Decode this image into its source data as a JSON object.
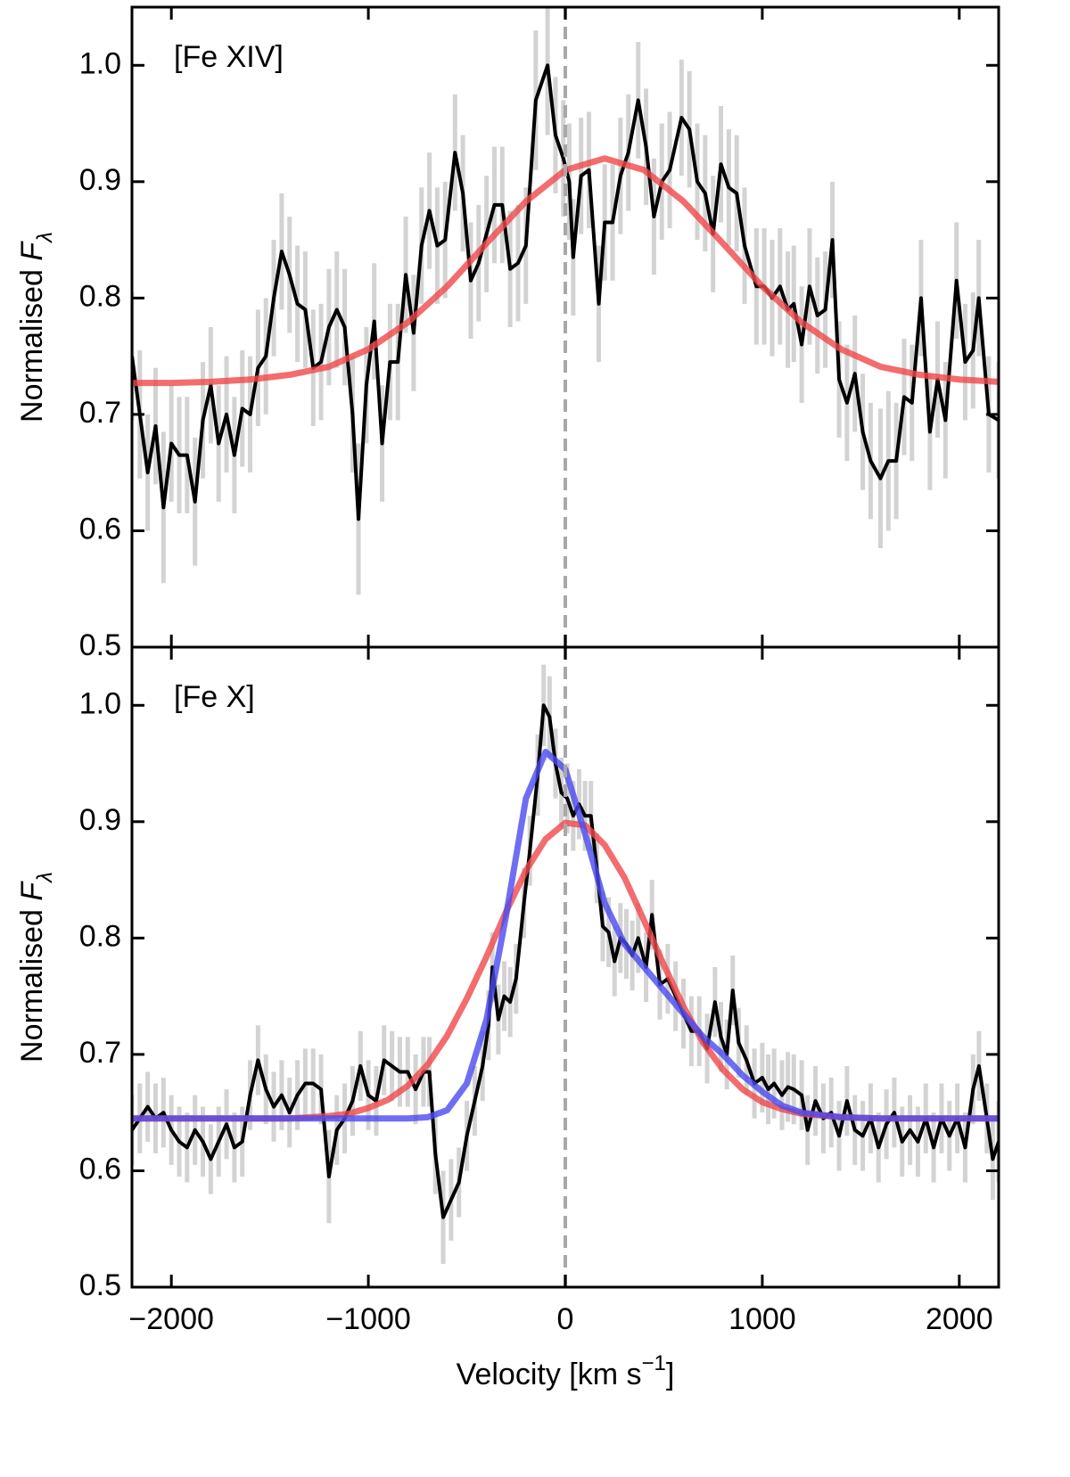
{
  "chart_data": [
    {
      "type": "line",
      "label": "[Fe XIV]",
      "ylabel": {
        "text": "Normalised ",
        "symbol": "F",
        "subscript": "λ"
      },
      "xlim": [
        -2200,
        2200
      ],
      "ylim": [
        0.5,
        1.05
      ],
      "xticks": [
        -2000,
        -1000,
        0,
        1000,
        2000
      ],
      "yticks": [
        0.5,
        0.6,
        0.7,
        0.8,
        0.9,
        {
          "value": 1,
          "label": "1.0"
        }
      ],
      "vline": 0,
      "series": [
        {
          "color": "#000000",
          "error_color": "#d3d3d3",
          "x": [
            -2200,
            -2160,
            -2120,
            -2080,
            -2040,
            -2000,
            -1960,
            -1920,
            -1880,
            -1840,
            -1800,
            -1760,
            -1720,
            -1680,
            -1640,
            -1600,
            -1560,
            -1520,
            -1480,
            -1440,
            -1400,
            -1360,
            -1320,
            -1280,
            -1240,
            -1200,
            -1160,
            -1120,
            -1080,
            -1050,
            -1010,
            -970,
            -930,
            -890,
            -850,
            -810,
            -770,
            -730,
            -690,
            -650,
            -610,
            -560,
            -520,
            -480,
            -440,
            -400,
            -360,
            -320,
            -280,
            -240,
            -200,
            -150,
            -90,
            -50,
            -10,
            20,
            40,
            80,
            120,
            170,
            200,
            240,
            280,
            320,
            370,
            410,
            450,
            490,
            530,
            590,
            630,
            670,
            710,
            750,
            790,
            830,
            870,
            910,
            970,
            1010,
            1050,
            1090,
            1130,
            1160,
            1200,
            1240,
            1280,
            1320,
            1356,
            1390,
            1430,
            1470,
            1510,
            1550,
            1600,
            1640,
            1680,
            1720,
            1760,
            1806,
            1851,
            1890,
            1930,
            1986,
            2030,
            2070,
            2099,
            2150,
            2200
          ],
          "values": [
            0.75,
            0.7,
            0.65,
            0.69,
            0.62,
            0.675,
            0.665,
            0.665,
            0.625,
            0.695,
            0.725,
            0.675,
            0.7,
            0.665,
            0.705,
            0.7,
            0.74,
            0.75,
            0.8,
            0.84,
            0.82,
            0.795,
            0.79,
            0.74,
            0.745,
            0.775,
            0.79,
            0.775,
            0.7,
            0.61,
            0.725,
            0.78,
            0.675,
            0.745,
            0.745,
            0.82,
            0.77,
            0.845,
            0.875,
            0.845,
            0.85,
            0.925,
            0.89,
            0.815,
            0.83,
            0.855,
            0.88,
            0.88,
            0.825,
            0.83,
            0.845,
            0.97,
            1.0,
            0.94,
            0.92,
            0.9,
            0.835,
            0.905,
            0.91,
            0.795,
            0.865,
            0.865,
            0.905,
            0.925,
            0.97,
            0.93,
            0.87,
            0.9,
            0.91,
            0.955,
            0.945,
            0.9,
            0.89,
            0.855,
            0.915,
            0.895,
            0.89,
            0.845,
            0.81,
            0.81,
            0.8,
            0.81,
            0.79,
            0.795,
            0.76,
            0.81,
            0.785,
            0.79,
            0.85,
            0.73,
            0.71,
            0.735,
            0.685,
            0.66,
            0.645,
            0.66,
            0.66,
            0.715,
            0.71,
            0.8,
            0.685,
            0.73,
            0.695,
            0.815,
            0.745,
            0.755,
            0.8,
            0.7,
            0.695
          ],
          "errors": [
            0.055,
            0.055,
            0.05,
            0.05,
            0.065,
            0.05,
            0.05,
            0.05,
            0.055,
            0.05,
            0.05,
            0.05,
            0.05,
            0.05,
            0.05,
            0.05,
            0.05,
            0.05,
            0.05,
            0.05,
            0.05,
            0.05,
            0.05,
            0.05,
            0.05,
            0.05,
            0.05,
            0.05,
            0.05,
            0.065,
            0.05,
            0.05,
            0.05,
            0.05,
            0.05,
            0.05,
            0.05,
            0.05,
            0.05,
            0.05,
            0.05,
            0.05,
            0.05,
            0.05,
            0.05,
            0.05,
            0.05,
            0.05,
            0.05,
            0.05,
            0.05,
            0.06,
            0.06,
            0.05,
            0.05,
            0.05,
            0.05,
            0.05,
            0.05,
            0.05,
            0.05,
            0.05,
            0.05,
            0.05,
            0.05,
            0.05,
            0.05,
            0.05,
            0.05,
            0.05,
            0.05,
            0.05,
            0.05,
            0.05,
            0.05,
            0.05,
            0.05,
            0.05,
            0.05,
            0.05,
            0.05,
            0.05,
            0.05,
            0.05,
            0.05,
            0.05,
            0.05,
            0.05,
            0.05,
            0.05,
            0.05,
            0.05,
            0.05,
            0.05,
            0.06,
            0.06,
            0.05,
            0.05,
            0.05,
            0.05,
            0.05,
            0.05,
            0.05,
            0.05,
            0.05,
            0.05,
            0.05,
            0.05,
            0.05
          ]
        },
        {
          "color": "#f0474a",
          "x": [
            -2200,
            -2000,
            -1800,
            -1600,
            -1400,
            -1200,
            -1000,
            -800,
            -600,
            -400,
            -200,
            0,
            200,
            400,
            600,
            800,
            1000,
            1200,
            1400,
            1600,
            1800,
            2000,
            2200
          ],
          "values": [
            0.727,
            0.727,
            0.728,
            0.73,
            0.734,
            0.741,
            0.756,
            0.779,
            0.81,
            0.847,
            0.883,
            0.91,
            0.92,
            0.91,
            0.883,
            0.847,
            0.81,
            0.779,
            0.756,
            0.741,
            0.734,
            0.73,
            0.728
          ]
        }
      ]
    },
    {
      "type": "line",
      "label": "[Fe X]",
      "ylabel": {
        "text": "Normalised ",
        "symbol": "F",
        "subscript": "λ"
      },
      "xlabel": {
        "text": "Velocity [km s",
        "superscript": "−1",
        "close": "]"
      },
      "xlim": [
        -2200,
        2200
      ],
      "ylim": [
        0.5,
        1.05
      ],
      "xticks": [
        {
          "value": -2000,
          "label": "−2000"
        },
        {
          "value": -1000,
          "label": "−1000"
        },
        0,
        1000,
        2000
      ],
      "yticks": [
        0.5,
        0.6,
        0.7,
        0.8,
        0.9,
        {
          "value": 1,
          "label": "1.0"
        }
      ],
      "vline": 0,
      "series": [
        {
          "color": "#000000",
          "error_color": "#d3d3d3",
          "x": [
            -2200,
            -2160,
            -2120,
            -2080,
            -2040,
            -2000,
            -1960,
            -1920,
            -1880,
            -1840,
            -1800,
            -1760,
            -1720,
            -1680,
            -1640,
            -1600,
            -1560,
            -1520,
            -1480,
            -1440,
            -1400,
            -1360,
            -1320,
            -1280,
            -1240,
            -1200,
            -1160,
            -1120,
            -1080,
            -1040,
            -1000,
            -960,
            -920,
            -880,
            -840,
            -800,
            -760,
            -720,
            -690,
            -660,
            -620,
            -580,
            -540,
            -500,
            -460,
            -420,
            -390,
            -370,
            -340,
            -310,
            -280,
            -250,
            -210,
            -180,
            -140,
            -110,
            -80,
            -50,
            -20,
            10,
            40,
            70,
            100,
            130,
            160,
            190,
            220,
            250,
            280,
            310,
            340,
            370,
            410,
            440,
            480,
            520,
            560,
            600,
            640,
            680,
            720,
            760,
            790,
            820,
            850,
            880,
            920,
            960,
            1000,
            1030,
            1060,
            1100,
            1130,
            1160,
            1200,
            1230,
            1270,
            1310,
            1350,
            1390,
            1430,
            1470,
            1510,
            1550,
            1590,
            1630,
            1670,
            1710,
            1750,
            1790,
            1830,
            1870,
            1910,
            1950,
            1990,
            2030,
            2070,
            2100,
            2140,
            2170,
            2200
          ],
          "values": [
            0.635,
            0.645,
            0.655,
            0.645,
            0.65,
            0.635,
            0.625,
            0.62,
            0.635,
            0.625,
            0.61,
            0.625,
            0.64,
            0.62,
            0.625,
            0.665,
            0.695,
            0.67,
            0.655,
            0.665,
            0.65,
            0.665,
            0.675,
            0.675,
            0.67,
            0.595,
            0.635,
            0.645,
            0.66,
            0.69,
            0.665,
            0.66,
            0.695,
            0.69,
            0.685,
            0.685,
            0.67,
            0.685,
            0.685,
            0.615,
            0.56,
            0.575,
            0.59,
            0.63,
            0.66,
            0.69,
            0.725,
            0.775,
            0.73,
            0.75,
            0.745,
            0.765,
            0.83,
            0.875,
            0.94,
            1.0,
            0.99,
            0.95,
            0.925,
            0.92,
            0.905,
            0.915,
            0.905,
            0.905,
            0.86,
            0.81,
            0.805,
            0.78,
            0.8,
            0.795,
            0.785,
            0.8,
            0.775,
            0.82,
            0.76,
            0.765,
            0.75,
            0.735,
            0.72,
            0.72,
            0.705,
            0.745,
            0.715,
            0.7,
            0.755,
            0.71,
            0.695,
            0.675,
            0.68,
            0.67,
            0.675,
            0.665,
            0.672,
            0.67,
            0.665,
            0.635,
            0.66,
            0.645,
            0.65,
            0.63,
            0.66,
            0.635,
            0.63,
            0.645,
            0.62,
            0.64,
            0.65,
            0.625,
            0.635,
            0.625,
            0.645,
            0.62,
            0.645,
            0.63,
            0.645,
            0.62,
            0.67,
            0.69,
            0.645,
            0.61,
            0.625
          ],
          "errors": [
            0.03,
            0.03,
            0.03,
            0.03,
            0.03,
            0.03,
            0.03,
            0.03,
            0.03,
            0.03,
            0.03,
            0.03,
            0.03,
            0.03,
            0.03,
            0.03,
            0.03,
            0.03,
            0.03,
            0.03,
            0.03,
            0.03,
            0.03,
            0.03,
            0.03,
            0.04,
            0.03,
            0.03,
            0.03,
            0.03,
            0.03,
            0.03,
            0.03,
            0.03,
            0.03,
            0.03,
            0.03,
            0.03,
            0.03,
            0.035,
            0.04,
            0.035,
            0.03,
            0.03,
            0.03,
            0.03,
            0.03,
            0.03,
            0.03,
            0.03,
            0.03,
            0.03,
            0.03,
            0.03,
            0.035,
            0.035,
            0.035,
            0.03,
            0.03,
            0.03,
            0.03,
            0.03,
            0.03,
            0.03,
            0.03,
            0.03,
            0.03,
            0.03,
            0.03,
            0.03,
            0.03,
            0.03,
            0.03,
            0.03,
            0.03,
            0.03,
            0.03,
            0.03,
            0.03,
            0.03,
            0.03,
            0.03,
            0.03,
            0.03,
            0.03,
            0.03,
            0.03,
            0.03,
            0.03,
            0.03,
            0.03,
            0.03,
            0.03,
            0.03,
            0.03,
            0.03,
            0.03,
            0.03,
            0.03,
            0.03,
            0.03,
            0.03,
            0.03,
            0.03,
            0.03,
            0.03,
            0.03,
            0.03,
            0.03,
            0.03,
            0.03,
            0.03,
            0.03,
            0.03,
            0.03,
            0.03,
            0.03,
            0.03,
            0.03,
            0.035,
            0.035
          ]
        },
        {
          "color": "#f0474a",
          "x": [
            -2200,
            -2000,
            -1800,
            -1600,
            -1400,
            -1200,
            -1100,
            -1000,
            -900,
            -800,
            -700,
            -600,
            -500,
            -400,
            -300,
            -200,
            -100,
            0,
            100,
            200,
            300,
            400,
            500,
            600,
            700,
            800,
            900,
            1000,
            1100,
            1200,
            1400,
            1600,
            1800,
            2000,
            2200
          ],
          "values": [
            0.645,
            0.645,
            0.645,
            0.645,
            0.645,
            0.647,
            0.649,
            0.654,
            0.661,
            0.673,
            0.691,
            0.716,
            0.748,
            0.784,
            0.823,
            0.858,
            0.885,
            0.899,
            0.897,
            0.88,
            0.852,
            0.815,
            0.777,
            0.741,
            0.71,
            0.687,
            0.67,
            0.659,
            0.653,
            0.649,
            0.646,
            0.645,
            0.645,
            0.645,
            0.645
          ]
        },
        {
          "color": "#4a4af0",
          "x": [
            -2200,
            -2000,
            -1800,
            -1600,
            -1400,
            -1200,
            -1100,
            -1000,
            -900,
            -800,
            -700,
            -600,
            -500,
            -400,
            -300,
            -200,
            -100,
            0,
            100,
            200,
            300,
            400,
            500,
            600,
            700,
            800,
            900,
            1000,
            1100,
            1200,
            1400,
            1600,
            1800,
            2000,
            2200
          ],
          "values": [
            0.645,
            0.645,
            0.645,
            0.645,
            0.645,
            0.645,
            0.645,
            0.645,
            0.645,
            0.645,
            0.646,
            0.652,
            0.675,
            0.73,
            0.82,
            0.92,
            0.96,
            0.945,
            0.89,
            0.83,
            0.795,
            0.775,
            0.755,
            0.735,
            0.715,
            0.7,
            0.682,
            0.668,
            0.656,
            0.65,
            0.646,
            0.645,
            0.645,
            0.645,
            0.645
          ]
        }
      ]
    }
  ]
}
